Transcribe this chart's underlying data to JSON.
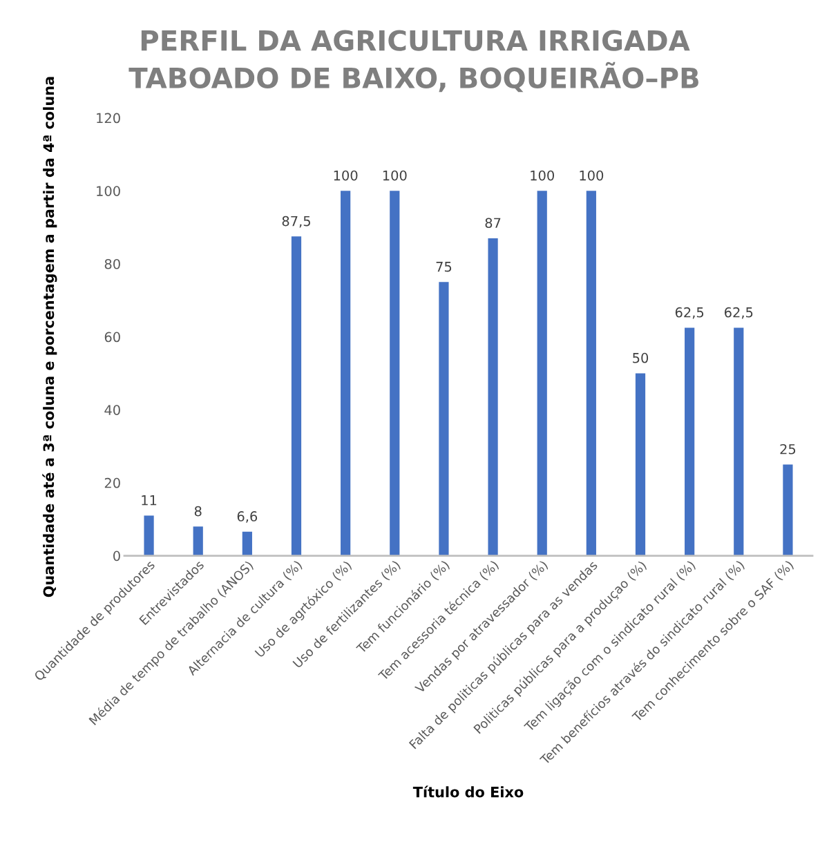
{
  "chart_data": {
    "type": "bar",
    "title": "PERFIL DA AGRICULTURA IRRIGADA\nTABOADO DE BAIXO, BOQUEIRÃO–PB",
    "xlabel": "Título do Eixo",
    "ylabel": "Quantidade até a 3ª coluna e porcentagem a partir da 4ª coluna",
    "categories": [
      "Quantidade de produtores",
      "Entrevistados",
      "Média de tempo de trabalho (ANOS)",
      "Alternacia de cultura (%)",
      "Uso de agrtóxico (%)",
      "Uso de fertilizantes (%)",
      "Tem funcionário (%)",
      "Tem acessoria técnica (%)",
      "Vendas por atravessador (%)",
      "Falta de politicas públicas para as vendas",
      "Politicas públicas para a produçao (%)",
      "Tem ligação com o sindicato rural (%)",
      "Tem benefícios através do sindicato rural (%)",
      "Tem conhecimento sobre o SAF (%)"
    ],
    "values": [
      11,
      8,
      6.6,
      87.5,
      100,
      100,
      75,
      87,
      100,
      100,
      50,
      62.5,
      62.5,
      25
    ],
    "value_labels": [
      "11",
      "8",
      "6,6",
      "87,5",
      "100",
      "100",
      "75",
      "87",
      "100",
      "100",
      "50",
      "62,5",
      "62,5",
      "25"
    ],
    "color": "#4472c4",
    "ylim": [
      0,
      120
    ],
    "yticks": [
      0,
      20,
      40,
      60,
      80,
      100,
      120
    ],
    "grid": false,
    "legend": false
  }
}
